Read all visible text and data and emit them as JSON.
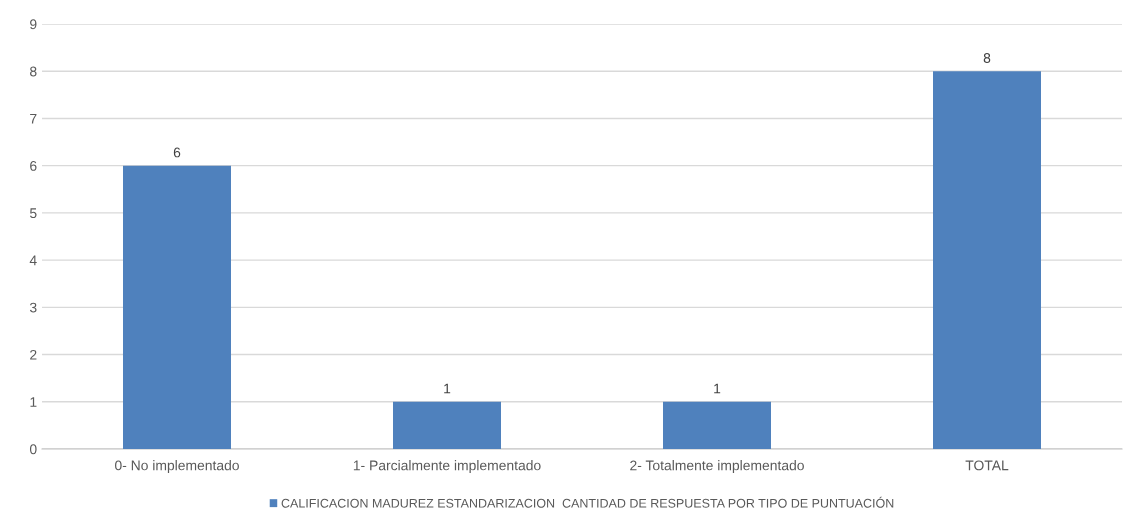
{
  "chart_data": {
    "type": "bar",
    "categories": [
      "0- No implementado",
      "1- Parcialmente implementado",
      "2- Totalmente implementado",
      "TOTAL"
    ],
    "series": [
      {
        "name": "CALIFICACION MADUREZ ESTANDARIZACION  CANTIDAD DE RESPUESTA POR TIPO DE PUNTUACIÓN",
        "color": "#4f81bd",
        "values": [
          6,
          1,
          1,
          8
        ]
      }
    ],
    "ylim": [
      0,
      9
    ],
    "yticks": [
      0,
      1,
      2,
      3,
      4,
      5,
      6,
      7,
      8,
      9
    ],
    "grid": "y",
    "legend": "bottom",
    "data_labels": true
  }
}
